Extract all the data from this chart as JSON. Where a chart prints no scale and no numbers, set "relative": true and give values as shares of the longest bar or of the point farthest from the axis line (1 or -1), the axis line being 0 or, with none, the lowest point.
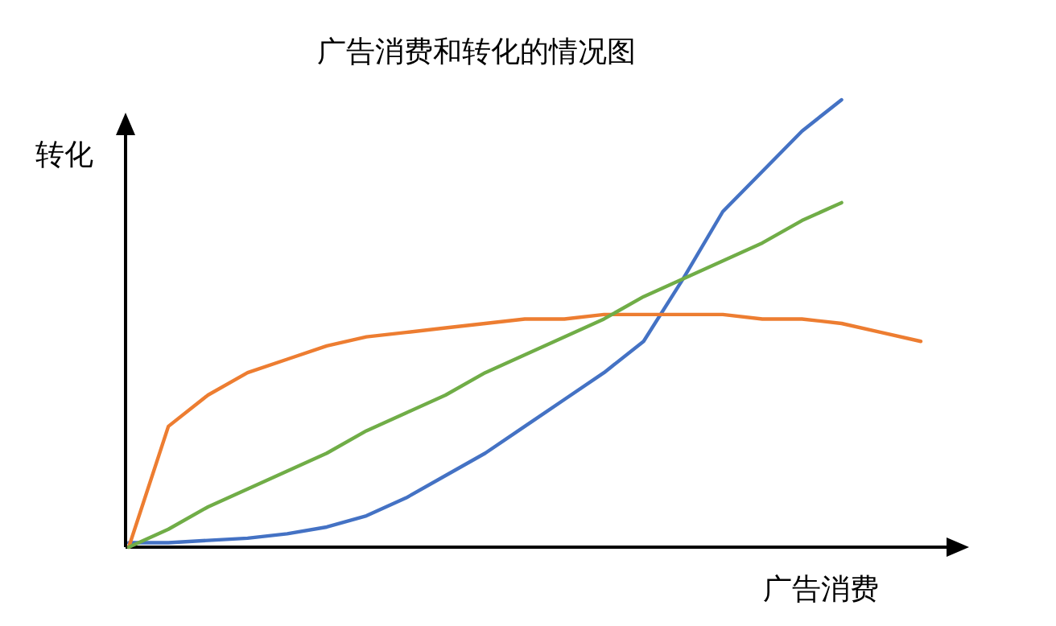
{
  "chart_data": {
    "type": "line",
    "title": "广告消费和转化的情况图",
    "xlabel": "广告消费",
    "ylabel": "转化",
    "relative": true,
    "categories": [
      null,
      null,
      null,
      null,
      null,
      null,
      null,
      null,
      null,
      null,
      null,
      null,
      null,
      null,
      null,
      null,
      null,
      null,
      null,
      null,
      null
    ],
    "series": [
      {
        "color": "#4472c4",
        "values": [
          0.01,
          0.01,
          0.015,
          0.02,
          0.03,
          0.045,
          0.07,
          0.11,
          0.16,
          0.21,
          0.27,
          0.33,
          0.39,
          0.46,
          0.6,
          0.75,
          0.84,
          0.93,
          1.0,
          null,
          null
        ]
      },
      {
        "color": "#ed7d31",
        "values": [
          0.0,
          0.27,
          0.34,
          0.39,
          0.42,
          0.45,
          0.47,
          0.48,
          0.49,
          0.5,
          0.51,
          0.51,
          0.52,
          0.52,
          0.52,
          0.52,
          0.51,
          0.51,
          0.5,
          0.48,
          0.46
        ]
      },
      {
        "color": "#70ad47",
        "values": [
          0.0,
          0.04,
          0.09,
          0.13,
          0.17,
          0.21,
          0.26,
          0.3,
          0.34,
          0.39,
          0.43,
          0.47,
          0.51,
          0.56,
          0.6,
          0.64,
          0.68,
          0.73,
          0.77,
          null,
          null
        ]
      }
    ]
  }
}
